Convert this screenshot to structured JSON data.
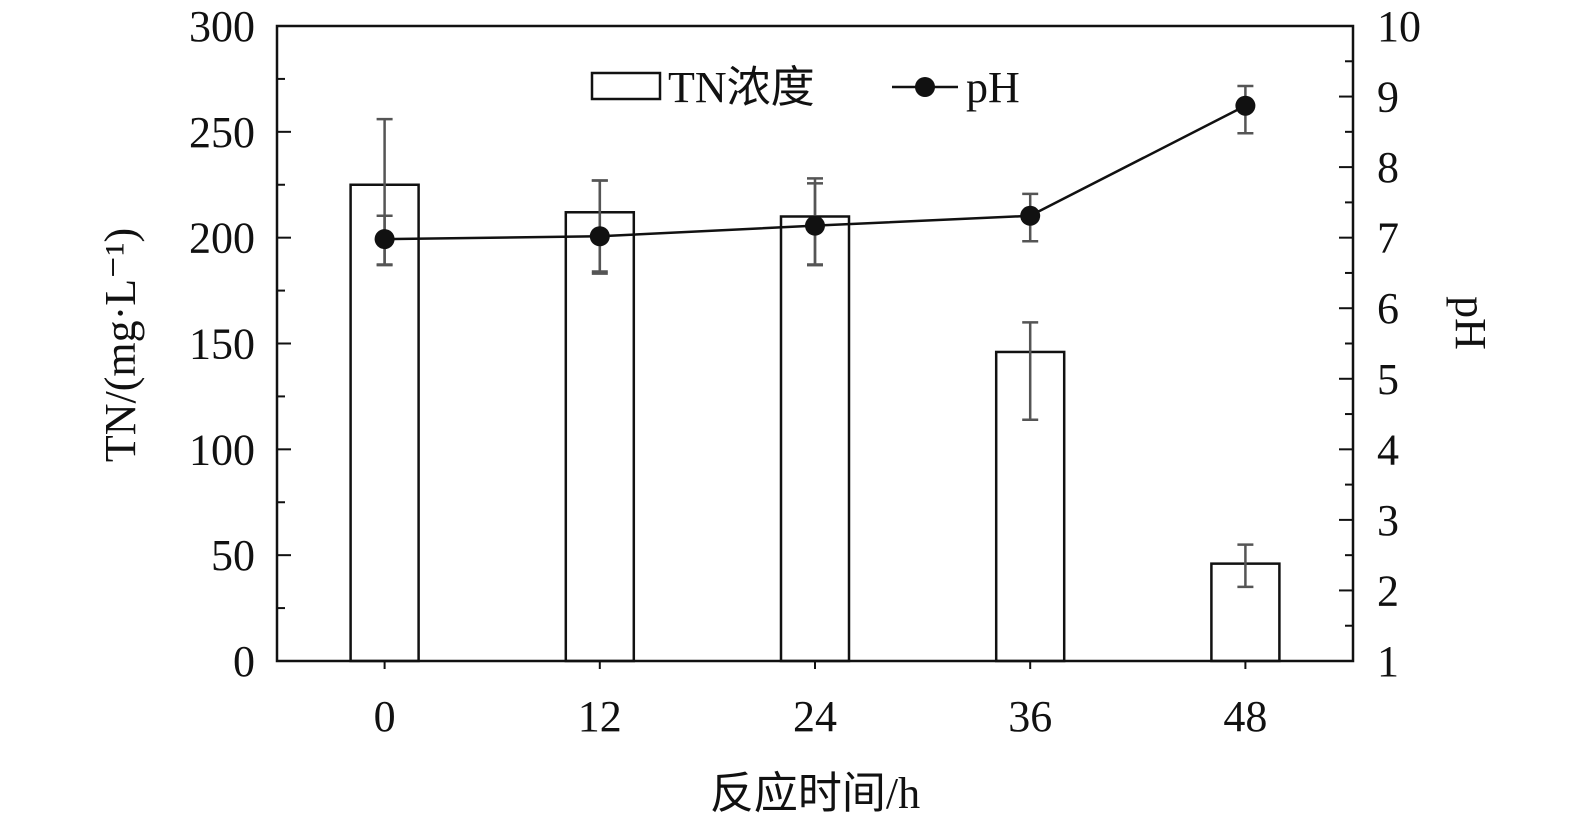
{
  "chart_data": {
    "type": "bar",
    "categories": [
      "0",
      "12",
      "24",
      "36",
      "48"
    ],
    "xlabel": "反应时间/h",
    "ylabel": "TN/(mg·L⁻¹)",
    "y2label": "pH",
    "ylim": [
      0,
      300
    ],
    "y2lim": [
      1,
      10
    ],
    "yticks": [
      "0",
      "50",
      "100",
      "150",
      "200",
      "250",
      "300"
    ],
    "y2ticks": [
      "1",
      "2",
      "3",
      "4",
      "5",
      "6",
      "7",
      "8",
      "9",
      "10"
    ],
    "grid": false,
    "legend_position": "top-center",
    "series": [
      {
        "name": "TN浓度",
        "type": "bar",
        "axis": "left",
        "values": [
          225,
          212,
          210,
          146,
          46
        ],
        "error": [
          [
            187,
            256
          ],
          [
            183,
            227
          ],
          [
            187,
            228
          ],
          [
            114,
            160
          ],
          [
            35,
            55
          ]
        ]
      },
      {
        "name": "pH",
        "type": "line",
        "axis": "right",
        "values": [
          6.98,
          7.02,
          7.17,
          7.31,
          8.87
        ],
        "error": [
          [
            6.62,
            7.31
          ],
          [
            6.52,
            7.81
          ],
          [
            6.62,
            7.77
          ],
          [
            6.95,
            7.62
          ],
          [
            8.48,
            9.15
          ]
        ]
      }
    ]
  }
}
